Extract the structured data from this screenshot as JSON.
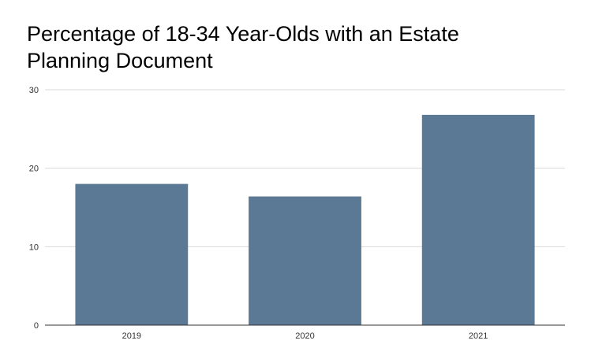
{
  "chart_data": {
    "type": "bar",
    "title": "Percentage of 18-34 Year-Olds with an Estate Planning Document",
    "categories": [
      "2019",
      "2020",
      "2021"
    ],
    "values": [
      18,
      16.4,
      26.8
    ],
    "xlabel": "",
    "ylabel": "",
    "ylim": [
      0,
      30
    ],
    "yticks": [
      0,
      10,
      20,
      30
    ],
    "grid": true,
    "legend": "none",
    "colors": {
      "bar": "#5b7894",
      "grid": "#d9d9d9",
      "axis": "#333333"
    }
  }
}
